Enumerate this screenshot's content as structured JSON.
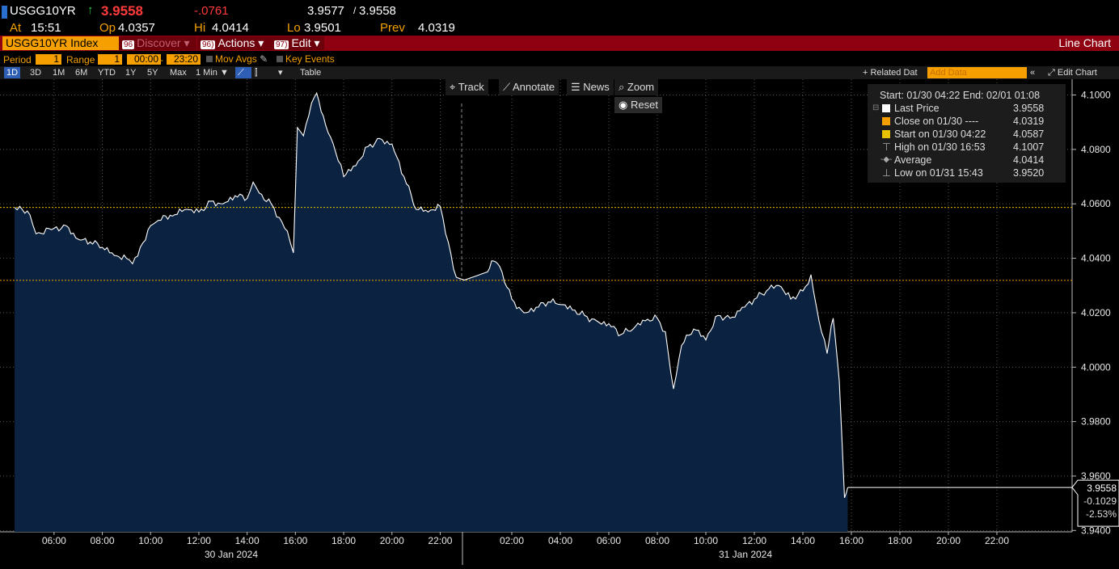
{
  "quote": {
    "ticker": "USGG10YR",
    "last": "3.9558",
    "change": "-.0761",
    "bid_ask": "3.9577",
    "bid_ask_sep": "/",
    "bid_ask_2": "3.9558",
    "at_label": "At",
    "at_time": "15:51",
    "open_label": "Op",
    "open": "4.0357",
    "hi_label": "Hi",
    "hi": "4.0414",
    "lo_label": "Lo",
    "lo": "3.9501",
    "prev_label": "Prev",
    "prev": "4.0319",
    "up_arrow": "↑",
    "colors": {
      "last": "#ff3b3b",
      "change": "#ff3b3b",
      "arrow": "#2ecc40"
    }
  },
  "menubar": {
    "security": "USGG10YR Index",
    "discover_num": "96",
    "discover": "Discover",
    "actions_num": "96)",
    "actions": "Actions",
    "edit_num": "97)",
    "edit": "Edit",
    "title": "Line Chart"
  },
  "settings": {
    "period_label": "Period",
    "period_value": "1",
    "range_label": "Range",
    "range_value": "1",
    "time_from": "00:00",
    "time_sep": "-",
    "time_to": "23:20",
    "mov_avgs": "Mov Avgs",
    "key_events": "Key Events"
  },
  "toolbar": {
    "ranges": [
      "1D",
      "3D",
      "1M",
      "6M",
      "YTD",
      "1Y",
      "5Y",
      "Max"
    ],
    "selected_range": "1D",
    "interval": "1 Min",
    "table": "Table",
    "related": "+ Related Dat",
    "add_data_placeholder": "Add Data",
    "edit_chart": "Edit Chart"
  },
  "chart_tools": {
    "track": "Track",
    "annotate": "Annotate",
    "news": "News",
    "zoom": "Zoom",
    "reset": "Reset"
  },
  "legend": {
    "header": "Start: 01/30 04:22 End: 02/01 01:08",
    "rows": [
      {
        "label": "Last Price",
        "value": "3.9558",
        "color": "#ffffff"
      },
      {
        "label": "Close on 01/30 ----",
        "value": "4.0319",
        "color": "#f5a000"
      },
      {
        "label": "Start on 01/30 04:22",
        "value": "4.0587",
        "color": "#e6c200"
      },
      {
        "label": "High on 01/30 16:53",
        "value": "4.1007",
        "color": ""
      },
      {
        "label": "Average",
        "value": "4.0414",
        "color": ""
      },
      {
        "label": "Low on 01/31 15:43",
        "value": "3.9520",
        "color": ""
      }
    ]
  },
  "last_tag": {
    "price": "3.9558",
    "change": "-0.1029",
    "pct": "-2.53%"
  },
  "chart_data": {
    "type": "area",
    "title": "",
    "ylim": [
      3.94,
      4.105
    ],
    "y_ticks": [
      "4.1000",
      "4.0800",
      "4.0600",
      "4.0400",
      "4.0200",
      "4.0000",
      "3.9800",
      "3.9600",
      "3.9400"
    ],
    "x_ticks": [
      "06:00",
      "08:00",
      "10:00",
      "12:00",
      "14:00",
      "16:00",
      "18:00",
      "20:00",
      "22:00",
      "02:00",
      "04:00",
      "06:00",
      "08:00",
      "10:00",
      "12:00",
      "14:00",
      "16:00",
      "18:00",
      "20:00",
      "22:00"
    ],
    "date_labels": [
      "30 Jan 2024",
      "31 Jan 2024"
    ],
    "grid": true,
    "reference_lines": [
      {
        "name": "Start",
        "value": 4.0587,
        "color": "#e6c200"
      },
      {
        "name": "Close",
        "value": 4.0319,
        "color": "#f5a000"
      }
    ],
    "series": [
      {
        "name": "Last Price",
        "x": [
          "01/30 04:22",
          "01/30 05:00",
          "01/30 05:15",
          "01/30 06:00",
          "01/30 06:30",
          "01/30 07:00",
          "01/30 07:30",
          "01/30 08:00",
          "01/30 08:30",
          "01/30 09:00",
          "01/30 09:15",
          "01/30 10:00",
          "01/30 10:20",
          "01/30 11:00",
          "01/30 11:30",
          "01/30 12:00",
          "01/30 12:30",
          "01/30 13:00",
          "01/30 13:30",
          "01/30 14:00",
          "01/30 14:15",
          "01/30 14:30",
          "01/30 15:00",
          "01/30 15:20",
          "01/30 15:40",
          "01/30 15:55",
          "01/30 16:05",
          "01/30 16:20",
          "01/30 16:40",
          "01/30 16:53",
          "01/30 17:15",
          "01/30 17:40",
          "01/30 18:00",
          "01/30 18:30",
          "01/30 19:00",
          "01/30 19:30",
          "01/30 20:00",
          "01/30 20:30",
          "01/30 21:00",
          "01/30 21:30",
          "01/30 22:00",
          "01/30 22:20",
          "01/30 22:40",
          "01/30 23:00",
          "01/31 01:00",
          "01/31 01:15",
          "01/31 01:30",
          "01/31 02:00",
          "01/31 02:30",
          "01/31 03:00",
          "01/31 03:30",
          "01/31 04:00",
          "01/31 04:30",
          "01/31 05:00",
          "01/31 05:30",
          "01/31 06:00",
          "01/31 06:30",
          "01/31 07:00",
          "01/31 07:30",
          "01/31 08:00",
          "01/31 08:20",
          "01/31 08:40",
          "01/31 09:00",
          "01/31 09:30",
          "01/31 10:00",
          "01/31 10:30",
          "01/31 11:00",
          "01/31 11:30",
          "01/31 12:00",
          "01/31 12:30",
          "01/31 13:00",
          "01/31 13:30",
          "01/31 14:00",
          "01/31 14:20",
          "01/31 14:40",
          "01/31 15:00",
          "01/31 15:15",
          "01/31 15:30",
          "01/31 15:43",
          "01/31 15:51"
        ],
        "y": [
          4.0587,
          4.056,
          4.049,
          4.051,
          4.052,
          4.047,
          4.046,
          4.044,
          4.041,
          4.04,
          4.038,
          4.052,
          4.054,
          4.056,
          4.058,
          4.057,
          4.061,
          4.06,
          4.063,
          4.062,
          4.068,
          4.064,
          4.06,
          4.055,
          4.05,
          4.042,
          4.088,
          4.085,
          4.097,
          4.1007,
          4.089,
          4.079,
          4.07,
          4.074,
          4.081,
          4.084,
          4.082,
          4.07,
          4.058,
          4.057,
          4.059,
          4.046,
          4.033,
          4.032,
          4.035,
          4.039,
          4.037,
          4.025,
          4.02,
          4.022,
          4.024,
          4.023,
          4.021,
          4.019,
          4.017,
          4.016,
          4.012,
          4.014,
          4.017,
          4.018,
          4.013,
          3.992,
          4.008,
          4.014,
          4.01,
          4.019,
          4.018,
          4.022,
          4.025,
          4.028,
          4.03,
          4.025,
          4.028,
          4.034,
          4.017,
          4.005,
          4.018,
          3.995,
          3.952,
          3.9558
        ]
      }
    ]
  }
}
